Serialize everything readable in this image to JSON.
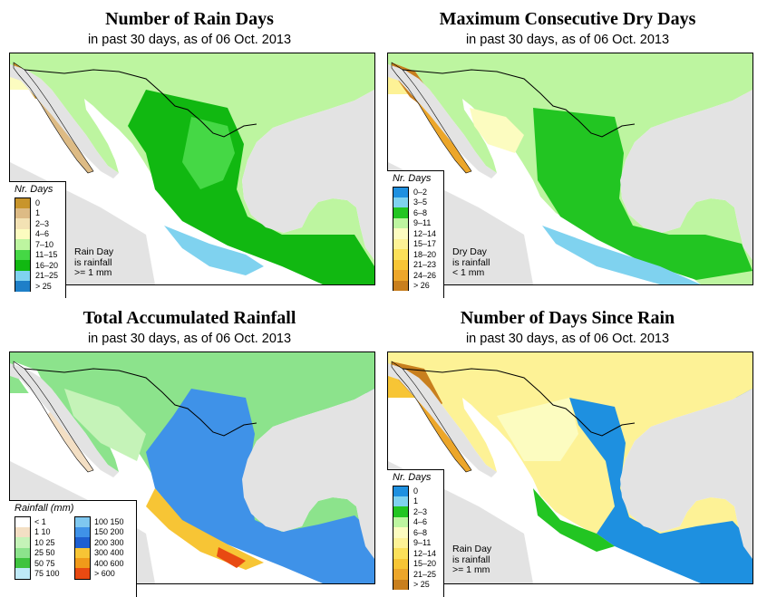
{
  "panels": [
    {
      "title": "Number of Rain Days",
      "subtitle": "in past 30 days, as of  06 Oct. 2013",
      "legend_title": "Nr. Days",
      "legend": [
        {
          "label": "0",
          "color": "#c8952c"
        },
        {
          "label": "1",
          "color": "#ddbb85"
        },
        {
          "label": "2–3",
          "color": "#f3e2b4"
        },
        {
          "label": "4–6",
          "color": "#fcfcc0"
        },
        {
          "label": "7–10",
          "color": "#bdf5a0"
        },
        {
          "label": "11–15",
          "color": "#45d845"
        },
        {
          "label": "16–20",
          "color": "#11b811"
        },
        {
          "label": "21–25",
          "color": "#7fd2ef"
        },
        {
          "label": "> 25",
          "color": "#1e7fc8"
        }
      ],
      "note": "Rain Day\nis rainfall\n>= 1 mm"
    },
    {
      "title": "Maximum Consecutive Dry Days",
      "subtitle": "in past 30 days, as of  06 Oct. 2013",
      "legend_title": "Nr. Days",
      "legend": [
        {
          "label": "0–2",
          "color": "#1e90e0"
        },
        {
          "label": "3–5",
          "color": "#7fd2ef"
        },
        {
          "label": "6–8",
          "color": "#22c522"
        },
        {
          "label": "9–11",
          "color": "#bdf5a0"
        },
        {
          "label": "12–14",
          "color": "#fcfcc0"
        },
        {
          "label": "15–17",
          "color": "#fdf296"
        },
        {
          "label": "18–20",
          "color": "#fbe05a"
        },
        {
          "label": "21–23",
          "color": "#f7c535"
        },
        {
          "label": "24–26",
          "color": "#eca62a"
        },
        {
          "label": "> 26",
          "color": "#c87f1e"
        }
      ],
      "note": "Dry Day\nis rainfall\n< 1 mm"
    },
    {
      "title": "Total Accumulated Rainfall",
      "subtitle": "in past 30 days, as of  06 Oct. 2013",
      "legend_title": "Rainfall (mm)",
      "legend_left": [
        {
          "label": "< 1",
          "color": "#ffffff"
        },
        {
          "label": "1    10",
          "color": "#f3dfc4"
        },
        {
          "label": "10    25",
          "color": "#c5f3b8"
        },
        {
          "label": "25    50",
          "color": "#8ce38c"
        },
        {
          "label": "50    75",
          "color": "#3fc33f"
        },
        {
          "label": "75   100",
          "color": "#bfeaf8"
        }
      ],
      "legend_right": [
        {
          "label": "100   150",
          "color": "#7fc8f0"
        },
        {
          "label": "150   200",
          "color": "#3f92e8"
        },
        {
          "label": "200   300",
          "color": "#1e5fd0"
        },
        {
          "label": "300   400",
          "color": "#f7c535"
        },
        {
          "label": "400   600",
          "color": "#f09a1a"
        },
        {
          "label": "> 600",
          "color": "#e84a12"
        }
      ]
    },
    {
      "title": "Number of Days Since Rain",
      "subtitle": "in past 30 days, as of  06 Oct. 2013",
      "legend_title": "Nr. Days",
      "legend": [
        {
          "label": "0",
          "color": "#1e90e0"
        },
        {
          "label": "1",
          "color": "#7fd2ef"
        },
        {
          "label": "2–3",
          "color": "#22c522"
        },
        {
          "label": "4–6",
          "color": "#bdf5a0"
        },
        {
          "label": "6–8",
          "color": "#fcfcc0"
        },
        {
          "label": "9–11",
          "color": "#fdf296"
        },
        {
          "label": "12–14",
          "color": "#fbe05a"
        },
        {
          "label": "15–20",
          "color": "#f7c535"
        },
        {
          "label": "21–25",
          "color": "#eca62a"
        },
        {
          "label": "> 25",
          "color": "#c87f1e"
        }
      ],
      "note": "Rain Day\nis rainfall\n>= 1 mm"
    }
  ]
}
